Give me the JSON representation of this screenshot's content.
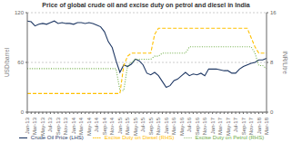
{
  "chart_data": {
    "type": "line",
    "title": "Price of global crude oil and excise duty on petrol and diesel in India",
    "ylabel": "USD/barrel",
    "y2label": "INR/Litre",
    "categories": [
      "Jan-13",
      null,
      "Mar-13",
      null,
      "May-13",
      null,
      "Jul-13",
      null,
      "Sep-13",
      null,
      "Nov-13",
      null,
      "Jan-14",
      null,
      "Mar-14",
      null,
      "May-14",
      null,
      "Jul-14",
      null,
      "Sep-14",
      null,
      "Nov-14",
      null,
      "Jan-15",
      null,
      "Mar-15",
      null,
      "May-15",
      null,
      "Jul-15",
      null,
      "Sep-15",
      null,
      "Nov-15",
      null,
      "Jan-16",
      null,
      "Mar-16",
      null,
      "May-16",
      null,
      "Jul-16",
      null,
      "Sep-16",
      null,
      "Nov-16",
      null,
      "Jan-17",
      null,
      "Mar-17",
      null,
      "May-17",
      null,
      "Jul-17",
      null,
      "Sep-17",
      null,
      "Nov-17",
      null,
      "Jan-18",
      null,
      "Mar-18"
    ],
    "series": [
      {
        "name": "Crude Oil Price (LHS)",
        "color": "#1f3864",
        "line_style": "solid",
        "values": [
          110,
          109,
          104,
          106,
          107,
          106,
          108,
          110,
          107,
          108,
          107,
          107,
          106,
          108,
          108,
          107,
          108,
          107,
          105,
          103,
          97,
          85,
          78,
          62,
          48,
          57,
          55,
          58,
          64,
          62,
          57,
          47,
          45,
          48,
          44,
          37,
          30,
          32,
          38,
          40,
          44,
          48,
          44,
          46,
          45,
          47,
          44,
          52,
          52,
          52,
          51,
          50,
          50,
          47,
          47,
          52,
          55,
          57,
          59,
          60,
          63,
          63,
          65
        ]
      },
      {
        "name": "Excise Duty on Petrol (RHS)",
        "color": "#70ad47",
        "line_style": "dotted",
        "axis": "y2",
        "values": [
          7.0,
          7.0,
          7.0,
          7.0,
          7.0,
          7.0,
          7.0,
          7.0,
          7.0,
          7.0,
          7.0,
          7.0,
          7.0,
          7.0,
          7.0,
          7.0,
          7.0,
          7.0,
          7.0,
          7.0,
          7.0,
          7.0,
          7.0,
          7.0,
          3.5,
          3.5,
          7.5,
          8.0,
          8.5,
          8.5,
          8.5,
          8.5,
          8.5,
          9.0,
          9.0,
          9.5,
          9.5,
          9.5,
          9.5,
          9.5,
          9.5,
          9.5,
          10.5,
          10.5,
          10.5,
          10.5,
          10.5,
          10.5,
          10.5,
          10.5,
          10.5,
          10.5,
          10.5,
          10.5,
          10.5,
          10.5,
          10.5,
          10.5,
          10.5,
          9.5,
          7.5,
          7.5,
          7.0
        ]
      },
      {
        "name": "Excise Duty on Diesel (RHS)",
        "color": "#ffc000",
        "line_style": "dashed",
        "axis": "y2",
        "values": [
          3.0,
          3.0,
          3.0,
          3.0,
          3.0,
          3.0,
          3.0,
          3.0,
          3.0,
          3.0,
          3.0,
          3.0,
          3.0,
          3.0,
          3.0,
          3.0,
          3.0,
          3.0,
          3.0,
          3.0,
          3.0,
          3.0,
          3.0,
          3.0,
          3.0,
          7.5,
          9.0,
          9.5,
          9.5,
          9.5,
          9.5,
          9.5,
          9.5,
          12.5,
          13.5,
          13.5,
          13.5,
          13.5,
          13.5,
          13.5,
          13.5,
          13.5,
          13.5,
          13.5,
          13.5,
          13.5,
          13.5,
          13.5,
          13.5,
          13.5,
          13.5,
          13.5,
          13.5,
          13.5,
          13.5,
          13.5,
          13.5,
          13.5,
          12.0,
          10.5,
          9.5,
          9.5,
          9.5
        ]
      }
    ],
    "ylim": [
      0,
      120
    ],
    "yticks": [
      0,
      60,
      120
    ],
    "y2lim": [
      0,
      16
    ],
    "y2ticks": [
      0,
      8,
      16
    ],
    "grid": true,
    "legend": "bottom"
  }
}
